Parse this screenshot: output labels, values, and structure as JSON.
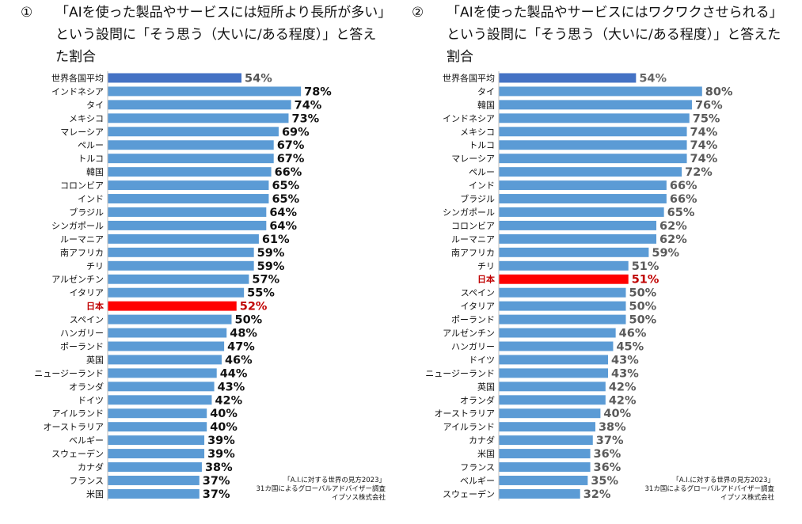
{
  "charts": [
    {
      "number": "①",
      "title": "「AIを使った製品やサービスには短所より長所が多い」という設問に「そう思う（大いに/ある程度）」と答えた割合",
      "source": [
        "「A.I.に対する世界の見方2023」",
        "31カ国によるグローバルアドバイザー調査",
        "イプソス株式会社"
      ]
    },
    {
      "number": "②",
      "title": "「AIを使った製品やサービスにはワクワクさせられる」という設問に「そう思う（大いに/ある程度）」と答えた割合",
      "source": [
        "「A.I.に対する世界の見方2023」",
        "31カ国によるグローバルアドバイザー調査",
        "イプソス株式会社"
      ]
    }
  ],
  "chart_data": [
    {
      "type": "bar",
      "orientation": "horizontal",
      "title": "「AIを使った製品やサービスには短所より長所が多い」という設問に「そう思う（大いに/ある程度）」と答えた割合",
      "unit": "%",
      "categories": [
        "世界各国平均",
        "インドネシア",
        "タイ",
        "メキシコ",
        "マレーシア",
        "ペルー",
        "トルコ",
        "韓国",
        "コロンビア",
        "インド",
        "ブラジル",
        "シンガポール",
        "ルーマニア",
        "南アフリカ",
        "チリ",
        "アルゼンチン",
        "イタリア",
        "日本",
        "スペイン",
        "ハンガリー",
        "ポーランド",
        "英国",
        "ニュージーランド",
        "オランダ",
        "ドイツ",
        "アイルランド",
        "オーストラリア",
        "ベルギー",
        "スウェーデン",
        "カナダ",
        "フランス",
        "米国"
      ],
      "values": [
        54,
        78,
        74,
        73,
        69,
        67,
        67,
        66,
        65,
        65,
        64,
        64,
        61,
        59,
        59,
        57,
        55,
        52,
        50,
        48,
        47,
        46,
        44,
        43,
        42,
        40,
        40,
        39,
        39,
        38,
        37,
        37
      ],
      "labels": [
        "54%",
        "78%",
        "74%",
        "73%",
        "69%",
        "67%",
        "67%",
        "66%",
        "65%",
        "65%",
        "64%",
        "64%",
        "61%",
        "59%",
        "59%",
        "57%",
        "55%",
        "52%",
        "50%",
        "48%",
        "47%",
        "46%",
        "44%",
        "43%",
        "42%",
        "40%",
        "40%",
        "39%",
        "39%",
        "38%",
        "37%",
        "37%"
      ],
      "highlight": {
        "average": "世界各国平均",
        "japan": "日本"
      },
      "colors": {
        "bar": "#5b9bd5",
        "average": "#4472c4",
        "japan": "#ff0000",
        "label": "#111111",
        "average_label": "#555555",
        "japan_label": "#c00000"
      },
      "xlim": [
        0,
        100
      ]
    },
    {
      "type": "bar",
      "orientation": "horizontal",
      "title": "「AIを使った製品やサービスにはワクワクさせられる」という設問に「そう思う（大いに/ある程度）」と答えた割合",
      "unit": "%",
      "categories": [
        "世界各国平均",
        "タイ",
        "韓国",
        "インドネシア",
        "メキシコ",
        "トルコ",
        "マレーシア",
        "ペルー",
        "インド",
        "ブラジル",
        "シンガポール",
        "コロンビア",
        "ルーマニア",
        "南アフリカ",
        "チリ",
        "日本",
        "スペイン",
        "イタリア",
        "ポーランド",
        "アルゼンチン",
        "ハンガリー",
        "ドイツ",
        "ニュージーランド",
        "英国",
        "オランダ",
        "オーストラリア",
        "アイルランド",
        "カナダ",
        "米国",
        "フランス",
        "ベルギー",
        "スウェーデン"
      ],
      "values": [
        54,
        80,
        76,
        75,
        74,
        74,
        74,
        72,
        66,
        66,
        65,
        62,
        62,
        59,
        51,
        51,
        50,
        50,
        50,
        46,
        45,
        43,
        43,
        42,
        42,
        40,
        38,
        37,
        36,
        36,
        35,
        32
      ],
      "labels": [
        "54%",
        "80%",
        "76%",
        "75%",
        "74%",
        "74%",
        "74%",
        "72%",
        "66%",
        "66%",
        "65%",
        "62%",
        "62%",
        "59%",
        "51%",
        "51%",
        "50%",
        "50%",
        "50%",
        "46%",
        "45%",
        "43%",
        "43%",
        "42%",
        "42%",
        "40%",
        "38%",
        "37%",
        "36%",
        "36%",
        "35%",
        "32%"
      ],
      "highlight": {
        "average": "世界各国平均",
        "japan": "日本"
      },
      "colors": {
        "bar": "#5b9bd5",
        "average": "#4472c4",
        "japan": "#ff0000",
        "label": "#5a5a5a",
        "average_label": "#666666",
        "japan_label": "#c00000"
      },
      "xlim": [
        0,
        100
      ]
    }
  ]
}
